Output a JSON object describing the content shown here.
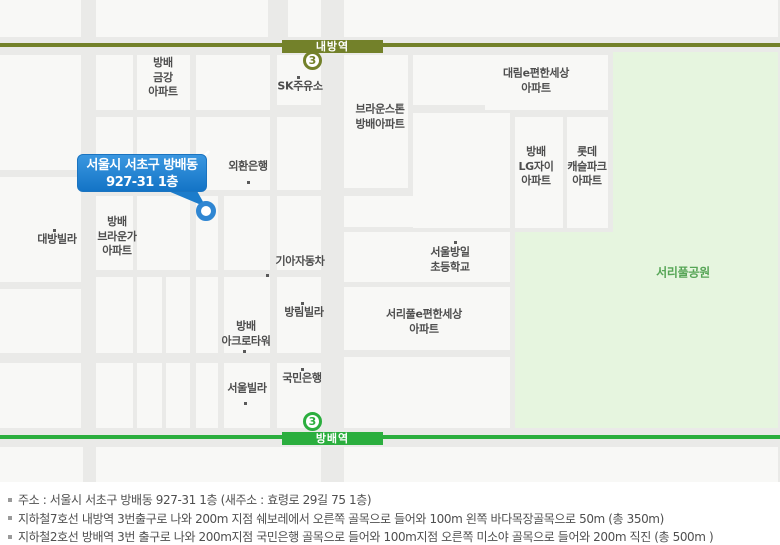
{
  "map": {
    "stations": {
      "top": {
        "name": "내방역",
        "line_badge": "3",
        "color": "#73812a"
      },
      "bottom": {
        "name": "방배역",
        "line_badge": "3",
        "color": "#2bae3e"
      }
    },
    "callout": {
      "line1": "서울시 서초구 방배동",
      "line2": "927-31 1층",
      "color": "#1e86d8"
    },
    "park_label": "서리풀공원",
    "labels": [
      {
        "id": "bangbae-geumgang-apt",
        "text": "방배\n금강\n아파트"
      },
      {
        "id": "sk-gas-station",
        "text": "SK주유소"
      },
      {
        "id": "daelim-epyeonhansesang-apt",
        "text": "대림e편한세상\n아파트"
      },
      {
        "id": "brownstone-bangbae-apt",
        "text": "브라운스톤\n방배아파트"
      },
      {
        "id": "oehwan-bank",
        "text": "외환은행"
      },
      {
        "id": "bangbae-lg-xi-apt",
        "text": "방배\nLG자이\n아파트"
      },
      {
        "id": "lotte-castle-park-apt",
        "text": "롯데\n캐슬파크\n아파트"
      },
      {
        "id": "daebang-villa",
        "text": "대방빌라"
      },
      {
        "id": "bangbae-browne-apt",
        "text": "방배\n브라운가\n아파트"
      },
      {
        "id": "kia-motors",
        "text": "기아자동차"
      },
      {
        "id": "seoul-bangil-elementary",
        "text": "서울방일\n초등학교"
      },
      {
        "id": "banglim-villa",
        "text": "방림빌라"
      },
      {
        "id": "seoripul-epyeonhansesang-apt",
        "text": "서리풀e편한세상\n아파트"
      },
      {
        "id": "bangbae-acro-tower",
        "text": "방배\n아크로타워"
      },
      {
        "id": "kookmin-bank",
        "text": "국민은행"
      },
      {
        "id": "seoul-villa",
        "text": "서울빌라"
      }
    ]
  },
  "colors": {
    "line7_olive": "#73812a",
    "line2_green": "#2bae3e",
    "callout_blue": "#1e86d8",
    "park_fill": "#e6f5df",
    "park_text": "#56a556"
  },
  "footer": {
    "lines": [
      "주소 : 서울시 서초구 방배동 927-31 1층 (새주소 : 효령로 29길 75 1층)",
      "지하철7호선 내방역 3번출구로 나와 200m 지점 쉐보레에서 오른쪽 골목으로 들어와 100m 왼쪽 바다목장골목으로 50m (총 350m)",
      "지하철2호선 방배역 3번 출구로 나와 200m지점 국민은행 골목으로 들어와 100m지점 오른쪽 미소야 골목으로 들어와 200m 직진 (총 500m )"
    ]
  }
}
